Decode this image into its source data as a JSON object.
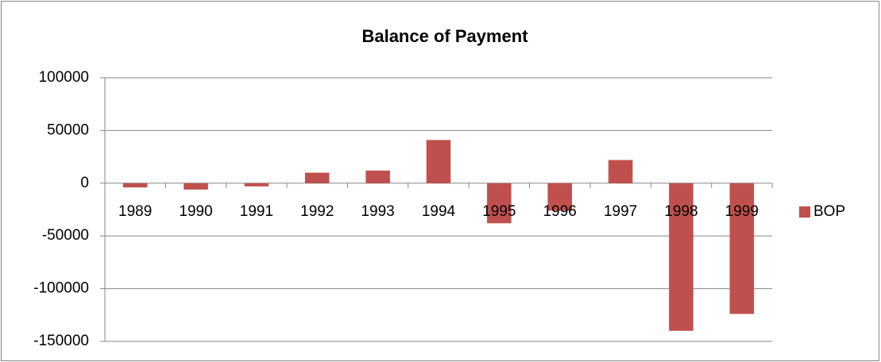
{
  "chart_data": {
    "type": "bar",
    "title": "Balance of Payment",
    "categories": [
      "1989",
      "1990",
      "1991",
      "1992",
      "1993",
      "1994",
      "1995",
      "1996",
      "1997",
      "1998",
      "1999"
    ],
    "series": [
      {
        "name": "BOP",
        "color": "#c0504d",
        "values": [
          -4000,
          -6000,
          -3000,
          10000,
          12000,
          41000,
          -38000,
          -26000,
          22000,
          -140000,
          -124000
        ]
      }
    ],
    "ylim": [
      -150000,
      100000
    ],
    "yticks": [
      -150000,
      -100000,
      -50000,
      0,
      50000,
      100000
    ],
    "grid": true,
    "legend": "right"
  }
}
